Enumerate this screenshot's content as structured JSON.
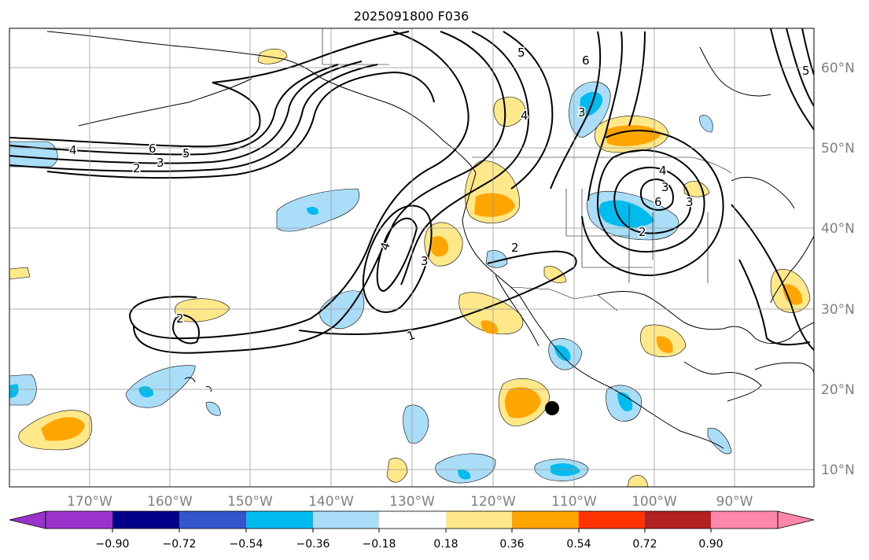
{
  "title": "2025091800 F036",
  "lon_labels": [
    "170°W",
    "160°W",
    "150°W",
    "140°W",
    "130°W",
    "120°W",
    "110°W",
    "100°W",
    "90°W"
  ],
  "lat_labels": [
    "60°N",
    "50°N",
    "40°N",
    "30°N",
    "20°N",
    "10°N"
  ],
  "contour_labels": [
    "4",
    "6",
    "5",
    "2",
    "3",
    "4",
    "3",
    "2",
    "1",
    "2",
    "3",
    "5",
    "6",
    "4",
    "3",
    "2",
    "3",
    "6",
    "4",
    "5"
  ],
  "colorbar": {
    "tick_labels": [
      "−0.90",
      "−0.72",
      "−0.54",
      "−0.36",
      "−0.18",
      "0.18",
      "0.36",
      "0.54",
      "0.72",
      "0.90"
    ],
    "colors": [
      "#9933cc",
      "#000088",
      "#3355cc",
      "#00bbee",
      "#aaddf8",
      "#ffffff",
      "#ffe88a",
      "#ffa500",
      "#ff3300",
      "#b22222",
      "#ff88aa",
      "#ff88aa"
    ]
  },
  "colors": {
    "grid": "#999999",
    "axis_text": "#808080",
    "contour": "#000000",
    "coast": "#000000"
  },
  "marker": "storm-center-dot"
}
